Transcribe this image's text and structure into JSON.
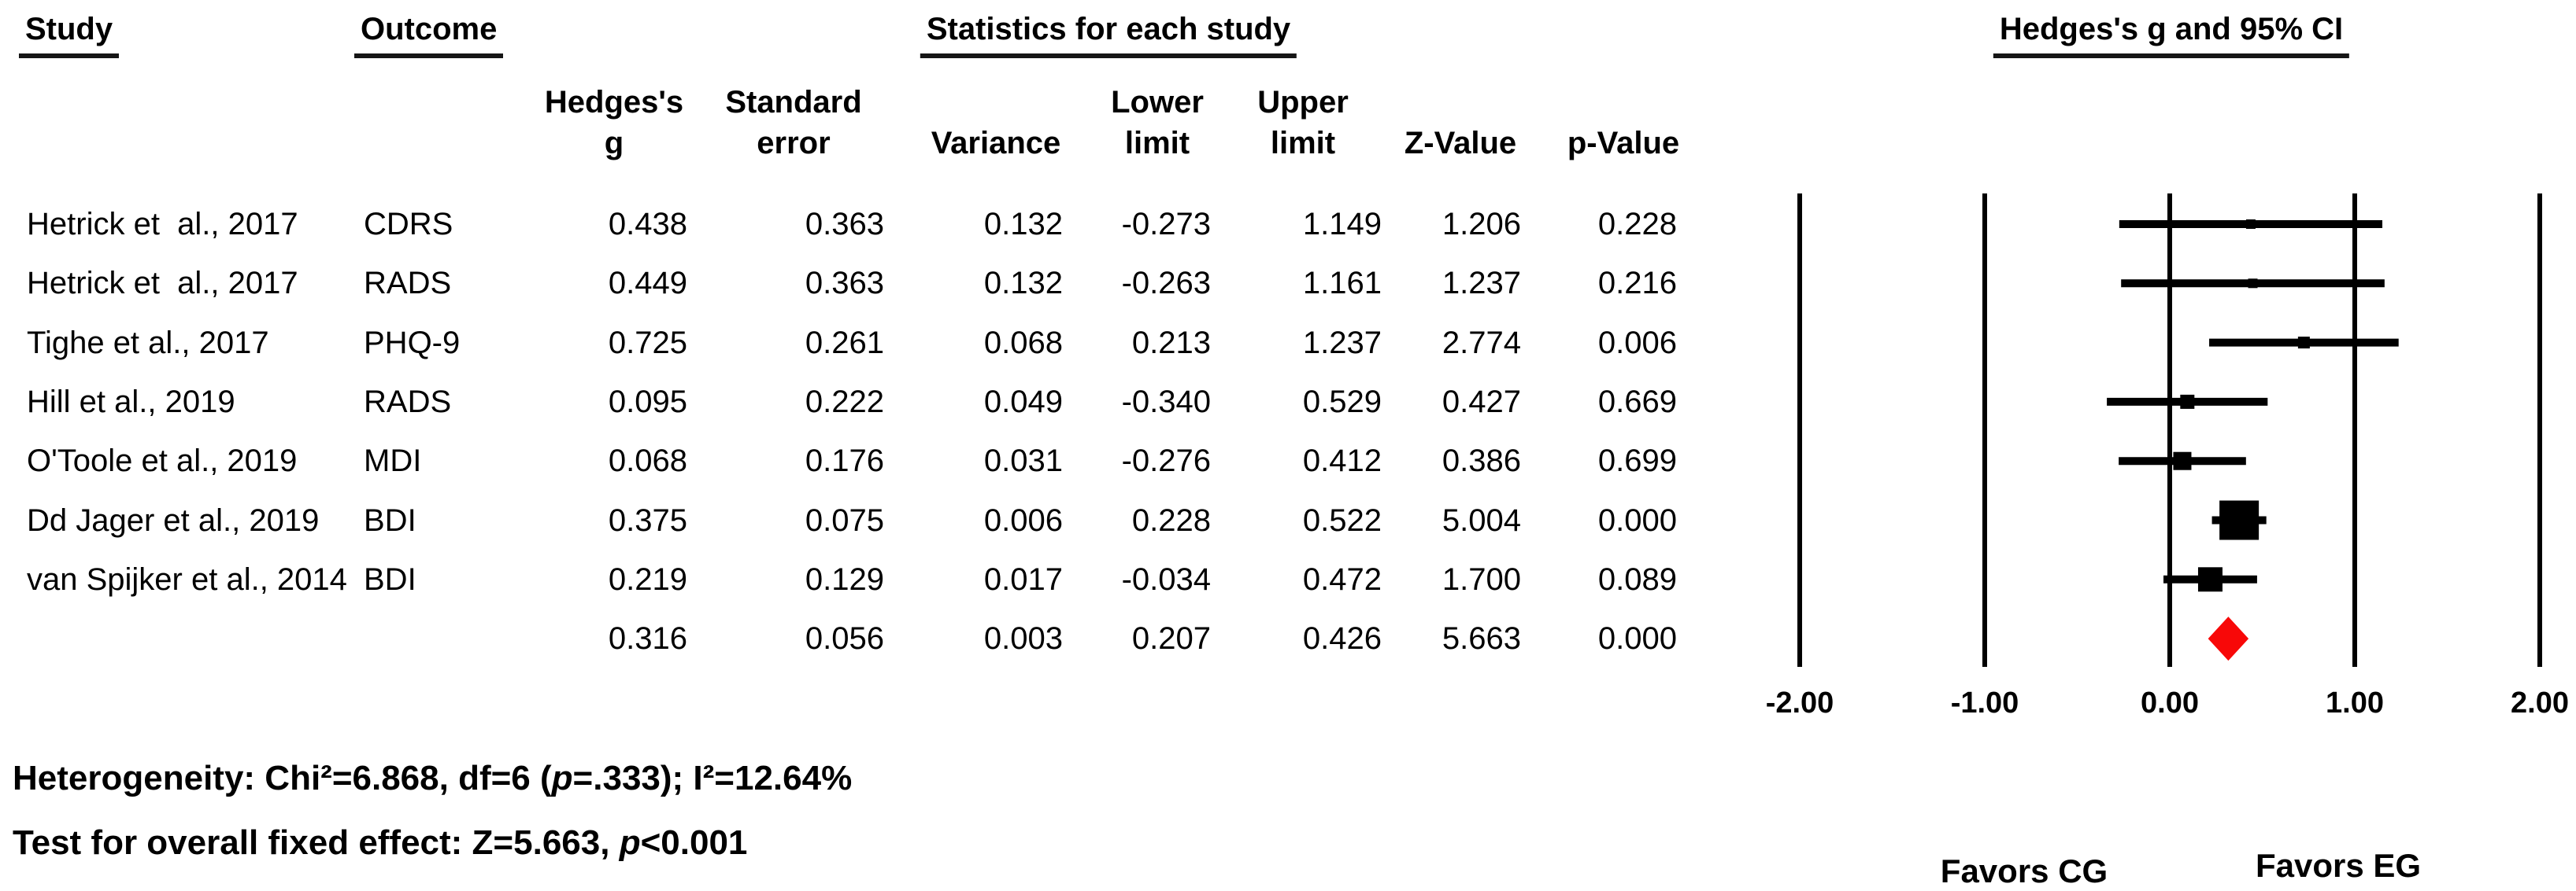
{
  "figure": {
    "section_headers": {
      "study": "Study",
      "outcome": "Outcome",
      "statistics": "Statistics for each study",
      "plot": "Hedges's g and 95% CI"
    },
    "columns": [
      {
        "line1": "Hedges's",
        "line2": "g"
      },
      {
        "line1": "Standard",
        "line2": "error"
      },
      {
        "line1": "",
        "line2": "Variance"
      },
      {
        "line1": "Lower",
        "line2": "limit"
      },
      {
        "line1": "Upper",
        "line2": "limit"
      },
      {
        "line1": "",
        "line2": "Z-Value"
      },
      {
        "line1": "",
        "line2": "p-Value"
      }
    ],
    "footnotes": {
      "heterogeneity": {
        "pre": "Heterogeneity: Chi²=6.868, df=6 (",
        "p": "p",
        "post": "=.333); I²=12.64%"
      },
      "overall_test": {
        "pre": "Test for overall fixed effect: Z=5.663, ",
        "p": "p",
        "post": "<0.001"
      }
    }
  },
  "chart_data": {
    "type": "forest",
    "title": "Hedges's g and 95% CI",
    "effect_measure": "Hedges's g",
    "model": "fixed",
    "stat_columns": [
      "Hedges's g",
      "Standard error",
      "Variance",
      "Lower limit",
      "Upper limit",
      "Z-Value",
      "p-Value"
    ],
    "axis": {
      "xlim": [
        -2,
        2
      ],
      "ticks": [
        -2,
        -1,
        0,
        1,
        2
      ],
      "tick_labels": [
        "-2.00",
        "-1.00",
        "0.00",
        "1.00",
        "2.00"
      ]
    },
    "studies": [
      {
        "study": "Hetrick et  al., 2017",
        "outcome": "CDRS",
        "g": 0.438,
        "se": 0.363,
        "variance": 0.132,
        "lower": -0.273,
        "upper": 1.149,
        "z": 1.206,
        "p": 0.228
      },
      {
        "study": "Hetrick et  al., 2017",
        "outcome": "RADS",
        "g": 0.449,
        "se": 0.363,
        "variance": 0.132,
        "lower": -0.263,
        "upper": 1.161,
        "z": 1.237,
        "p": 0.216
      },
      {
        "study": "Tighe et al., 2017",
        "outcome": "PHQ-9",
        "g": 0.725,
        "se": 0.261,
        "variance": 0.068,
        "lower": 0.213,
        "upper": 1.237,
        "z": 2.774,
        "p": 0.006
      },
      {
        "study": "Hill et al., 2019",
        "outcome": "RADS",
        "g": 0.095,
        "se": 0.222,
        "variance": 0.049,
        "lower": -0.34,
        "upper": 0.529,
        "z": 0.427,
        "p": 0.669
      },
      {
        "study": "O'Toole et al., 2019",
        "outcome": "MDI",
        "g": 0.068,
        "se": 0.176,
        "variance": 0.031,
        "lower": -0.276,
        "upper": 0.412,
        "z": 0.386,
        "p": 0.699
      },
      {
        "study": "Dd Jager et al., 2019",
        "outcome": "BDI",
        "g": 0.375,
        "se": 0.075,
        "variance": 0.006,
        "lower": 0.228,
        "upper": 0.522,
        "z": 5.004,
        "p": 0.0
      },
      {
        "study": "van Spijker et al., 2014",
        "outcome": "BDI",
        "g": 0.219,
        "se": 0.129,
        "variance": 0.017,
        "lower": -0.034,
        "upper": 0.472,
        "z": 1.7,
        "p": 0.089
      }
    ],
    "overall": {
      "g": 0.316,
      "se": 0.056,
      "variance": 0.003,
      "lower": 0.207,
      "upper": 0.426,
      "z": 5.663,
      "p": 0.0,
      "marker": "diamond",
      "color": "#f80808"
    },
    "favors_left": "Favors CG",
    "favors_right": "Favors EG",
    "footnotes": [
      "Heterogeneity: Chi²=6.868, df=6 (p=.333); I²=12.64%",
      "Test for overall fixed effect: Z=5.663, p<0.001"
    ],
    "line_color": "#000000",
    "background": "#ffffff"
  }
}
